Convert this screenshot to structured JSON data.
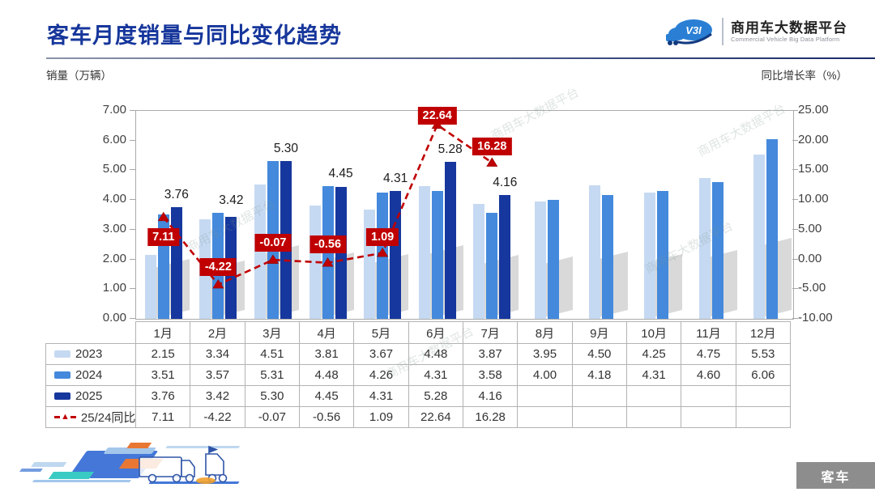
{
  "header": {
    "title": "客车月度销量与同比变化趋势",
    "logo_badge": "V3I",
    "brand_cn": "商用车大数据平台",
    "brand_en": "Commercial Vehicle Big Data Platform"
  },
  "axes": {
    "left_title": "销量（万辆）",
    "right_title": "同比增长率（%）"
  },
  "watermark_text": "商用车大数据平台",
  "footer": {
    "badge": "客车"
  },
  "colors": {
    "y2023": "#c6d9f2",
    "y2024": "#4489dc",
    "y2025": "#16379d",
    "line": "#c00000",
    "title_blue": "#16369b",
    "badge_gray": "#8d8d8d"
  },
  "chart_data": {
    "type": "bar+line combo",
    "categories": [
      "1月",
      "2月",
      "3月",
      "4月",
      "5月",
      "6月",
      "7月",
      "8月",
      "9月",
      "10月",
      "11月",
      "12月"
    ],
    "series": [
      {
        "name": "2023",
        "type": "bar",
        "color_key": "y2023",
        "values": [
          2.15,
          3.34,
          4.51,
          3.81,
          3.67,
          4.48,
          3.87,
          3.95,
          4.5,
          4.25,
          4.75,
          5.53
        ]
      },
      {
        "name": "2024",
        "type": "bar",
        "color_key": "y2024",
        "values": [
          3.51,
          3.57,
          5.31,
          4.48,
          4.26,
          4.31,
          3.58,
          4.0,
          4.18,
          4.31,
          4.6,
          6.06
        ]
      },
      {
        "name": "2025",
        "type": "bar",
        "color_key": "y2025",
        "values": [
          3.76,
          3.42,
          5.3,
          4.45,
          4.31,
          5.28,
          4.16,
          null,
          null,
          null,
          null,
          null
        ]
      },
      {
        "name": "25/24同比",
        "type": "line",
        "color_key": "line",
        "values": [
          7.11,
          -4.22,
          -0.07,
          -0.56,
          1.09,
          22.64,
          16.28,
          null,
          null,
          null,
          null,
          null
        ],
        "label_dy": [
          14,
          -33,
          -32,
          -34,
          -31,
          -22,
          -31
        ]
      }
    ],
    "bar_value_labels_series": "2025",
    "left_axis": {
      "min": 0,
      "max": 7,
      "step": 1
    },
    "right_axis": {
      "min": -10,
      "max": 25,
      "step": 5
    },
    "grid": false,
    "legend_position": "table-left-column"
  }
}
